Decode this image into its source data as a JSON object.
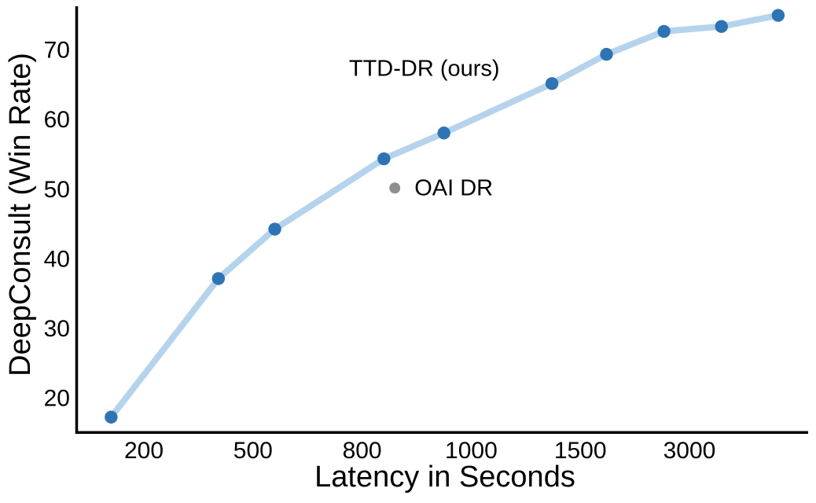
{
  "figure": {
    "xlabel": "Latency in Seconds",
    "ylabel": "DeepConsult (Win Rate)"
  },
  "chart_data": {
    "type": "line",
    "title": "",
    "xlabel": "Latency in Seconds",
    "ylabel": "DeepConsult (Win Rate)",
    "x_scale": "custom (tick values rendered at equal spacing)",
    "x_ticks": [
      200,
      500,
      800,
      1000,
      1500,
      3000
    ],
    "y_ticks": [
      20,
      30,
      40,
      50,
      60,
      70
    ],
    "ylim": [
      15,
      76.2
    ],
    "grid": false,
    "legend_position": "none (inline annotations)",
    "series": [
      {
        "name": "TTD-DR (ours)",
        "type": "line+markers",
        "marker_color": "#2e74b4",
        "line_color": "#b5d3ec",
        "points": [
          {
            "x": 110,
            "y": 17.2
          },
          {
            "x": 405,
            "y": 37.1
          },
          {
            "x": 560,
            "y": 44.2
          },
          {
            "x": 840,
            "y": 54.3
          },
          {
            "x": 950,
            "y": 58.0
          },
          {
            "x": 1370,
            "y": 65.1
          },
          {
            "x": 1860,
            "y": 69.3
          },
          {
            "x": 2650,
            "y": 72.6
          },
          {
            "x": 3440,
            "y": 73.3
          },
          {
            "x": 4220,
            "y": 74.9
          }
        ]
      },
      {
        "name": "OAI DR",
        "type": "scatter",
        "marker_color": "#8f8f8f",
        "points": [
          {
            "x": 860,
            "y": 50.1
          }
        ]
      }
    ],
    "annotations": [
      {
        "text": "TTD-DR (ours)",
        "x": 914,
        "y": 67.2,
        "anchor": "middle",
        "series": "TTD-DR (ours)"
      },
      {
        "text": "OAI DR",
        "x": 896,
        "y": 50.1,
        "anchor": "start",
        "series": "OAI DR"
      }
    ],
    "colors": {
      "axis": "#000000",
      "background": "#ffffff"
    }
  }
}
